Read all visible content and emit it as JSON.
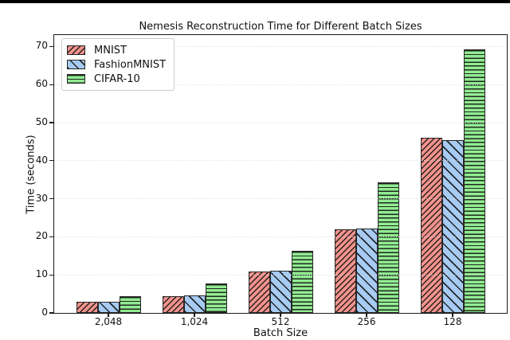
{
  "figure": {
    "title": "Nemesis Reconstruction Time for Different Batch Sizes",
    "xlabel": "Batch Size",
    "ylabel": "Time (seconds)"
  },
  "chart_data": {
    "type": "bar",
    "title": "Nemesis Reconstruction Time for Different Batch Sizes",
    "xlabel": "Batch Size",
    "ylabel": "Time (seconds)",
    "categories": [
      "2,048",
      "1,024",
      "512",
      "256",
      "128"
    ],
    "series": [
      {
        "name": "MNIST",
        "color": "#F2938D",
        "hatch": "/",
        "values": [
          3.0,
          4.5,
          10.8,
          22.0,
          46.0
        ]
      },
      {
        "name": "FashionMNIST",
        "color": "#A7CBF2",
        "hatch": "\\",
        "values": [
          2.9,
          4.7,
          11.0,
          22.2,
          45.4
        ]
      },
      {
        "name": "CIFAR-10",
        "color": "#92EC92",
        "hatch": "-",
        "values": [
          4.5,
          7.8,
          16.4,
          34.3,
          69.3
        ]
      }
    ],
    "yticks": [
      0,
      10,
      20,
      30,
      40,
      50,
      60,
      70
    ],
    "ylim": [
      0,
      73
    ],
    "grid": "horizontal-dotted-above-bars",
    "grid_color": "#d8d8d8",
    "edge_color": "#262626",
    "legend_position": "upper-left"
  }
}
